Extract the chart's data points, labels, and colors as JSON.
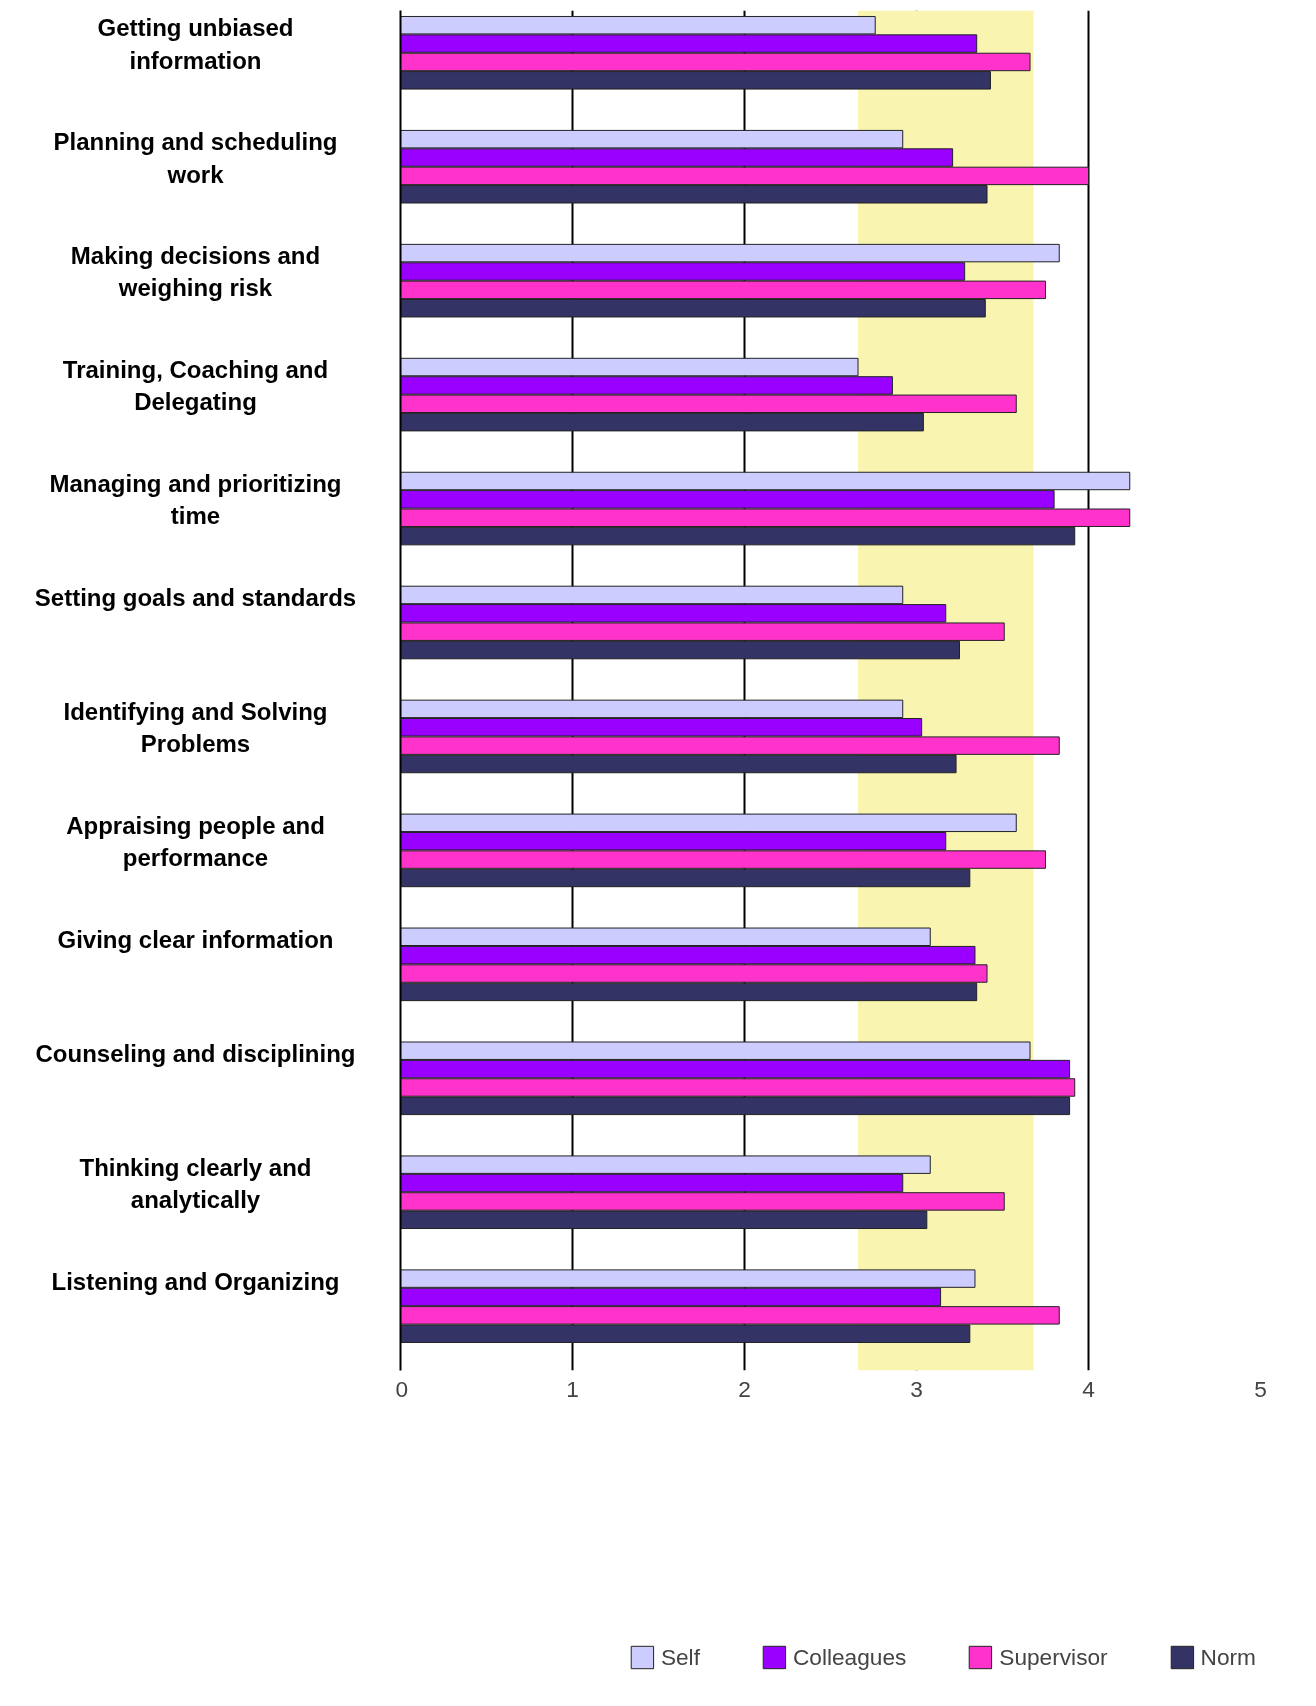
{
  "chart_data": {
    "type": "bar",
    "orientation": "horizontal",
    "categories": [
      "Getting unbiased information",
      "Planning and scheduling work",
      "Making decisions and weighing risk",
      "Training, Coaching and Delegating",
      "Managing and prioritizing time",
      "Setting goals and standards",
      "Identifying and Solving Problems",
      "Appraising people and performance",
      "Giving clear information",
      "Counseling and disciplining",
      "Thinking clearly and analytically",
      "Listening and Organizing"
    ],
    "series": [
      {
        "name": "Self",
        "color": "#ccccff",
        "values": [
          2.76,
          2.92,
          3.83,
          2.66,
          4.24,
          2.92,
          2.92,
          3.58,
          3.08,
          3.66,
          3.08,
          3.34
        ]
      },
      {
        "name": "Colleagues",
        "color": "#9900ff",
        "values": [
          3.35,
          3.21,
          3.28,
          2.86,
          3.8,
          3.17,
          3.03,
          3.17,
          3.34,
          3.89,
          2.92,
          3.14
        ]
      },
      {
        "name": "Supervisor",
        "color": "#ff33cc",
        "values": [
          3.66,
          4.0,
          3.75,
          3.58,
          4.24,
          3.51,
          3.83,
          3.75,
          3.41,
          3.92,
          3.51,
          3.83
        ]
      },
      {
        "name": "Norm",
        "color": "#333366",
        "values": [
          3.43,
          3.41,
          3.4,
          3.04,
          3.92,
          3.25,
          3.23,
          3.31,
          3.35,
          3.89,
          3.06,
          3.31
        ]
      }
    ],
    "xlim": [
      0,
      5
    ],
    "xticks": [
      0,
      1,
      2,
      3,
      4,
      5
    ],
    "bands": [
      {
        "axis": "x",
        "from": 2.66,
        "to": 3.68,
        "color": "#f9f5b0"
      }
    ],
    "grid": "x",
    "legend": "bottom"
  }
}
